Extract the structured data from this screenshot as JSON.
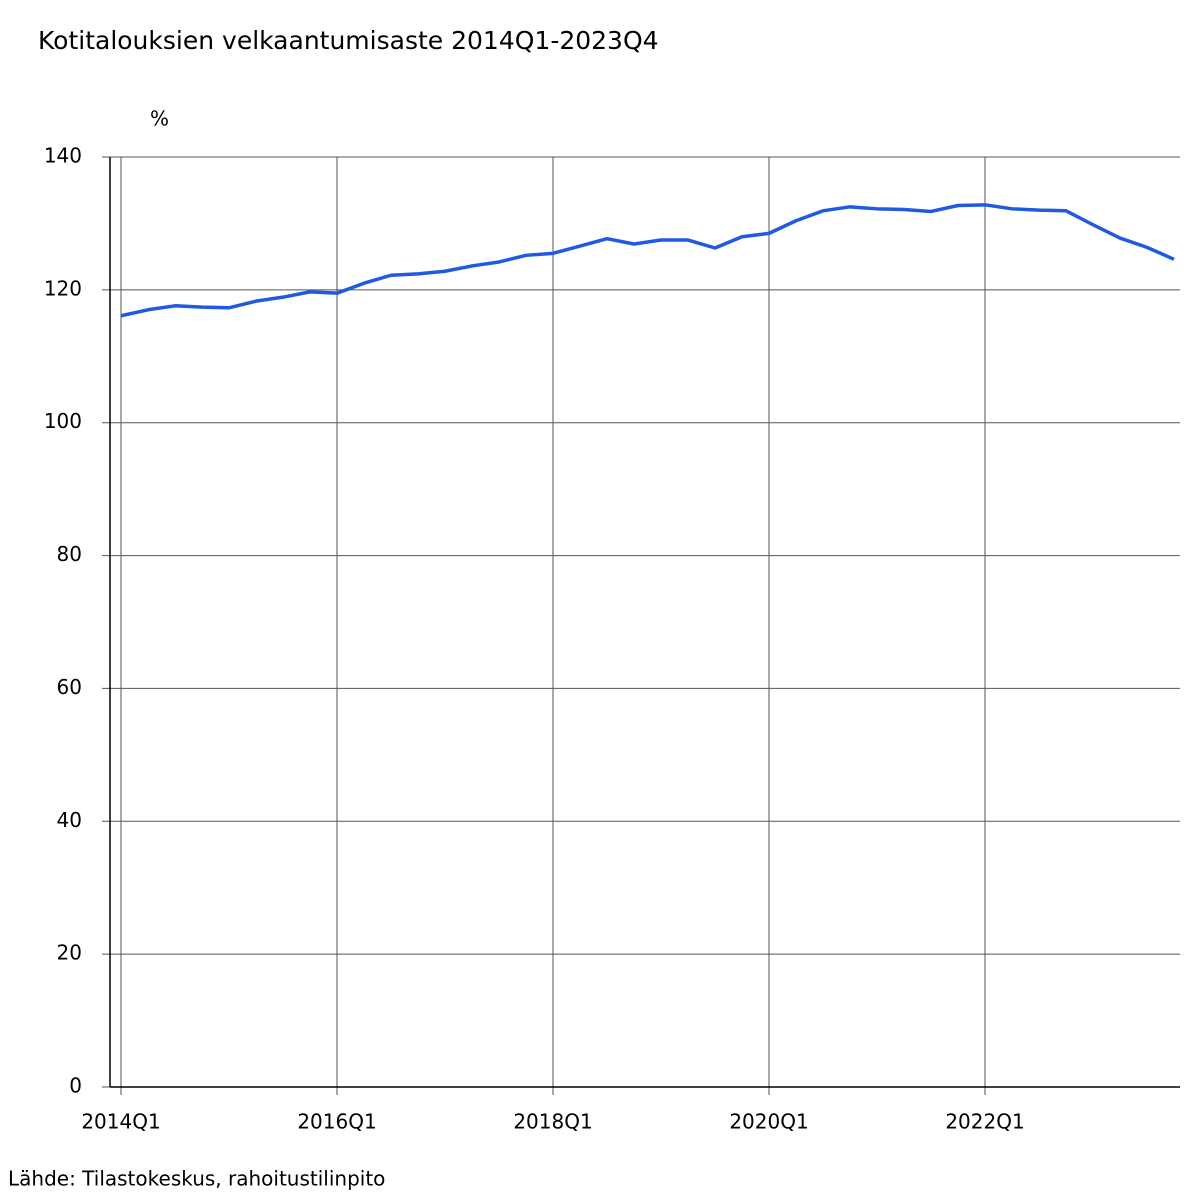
{
  "chart_data": {
    "type": "line",
    "title": "Kotitalouksien velkaantumisaste 2014Q1-2023Q4",
    "y_label": "%",
    "source": "Lähde: Tilastokeskus, rahoitustilinpito",
    "categories": [
      "2014Q1",
      null,
      null,
      null,
      null,
      null,
      null,
      null,
      "2016Q1",
      null,
      null,
      null,
      null,
      null,
      null,
      null,
      "2018Q1",
      null,
      null,
      null,
      null,
      null,
      null,
      null,
      "2020Q1",
      null,
      null,
      null,
      null,
      null,
      null,
      null,
      "2022Q1",
      null,
      null,
      null,
      null,
      null,
      null,
      null
    ],
    "series": [
      {
        "name": "Velkaantumisaste",
        "color": "#1f5ae0",
        "values": [
          116.1,
          117.0,
          117.6,
          117.4,
          117.3,
          118.3,
          118.9,
          119.7,
          119.5,
          121.0,
          122.2,
          122.4,
          122.8,
          123.6,
          124.2,
          125.2,
          125.5,
          126.6,
          127.7,
          126.9,
          127.5,
          127.5,
          126.3,
          128.0,
          128.5,
          130.4,
          131.9,
          132.5,
          132.2,
          132.1,
          131.8,
          132.7,
          132.8,
          132.2,
          132.0,
          131.9,
          129.8,
          127.8,
          126.4,
          124.6
        ]
      }
    ],
    "ylim": [
      0,
      140
    ],
    "yticks": [
      0,
      20,
      40,
      60,
      80,
      100,
      120,
      140
    ],
    "grid": true
  }
}
